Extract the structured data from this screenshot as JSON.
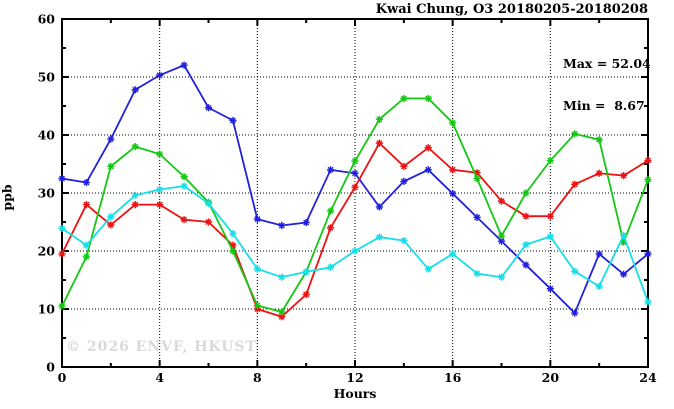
{
  "chart": {
    "title": "Kwai Chung, O3 20180205-20180208",
    "xlabel": "Hours",
    "ylabel": "ppb",
    "watermark": "© 2026 ENVF, HKUST",
    "annotations": {
      "max": "Max = 52.04",
      "min": "Min =  8.67"
    },
    "frame_color": "#000000",
    "background": "#ffffff"
  },
  "chart_data": {
    "type": "line",
    "title": "Kwai Chung, O3 20180205-20180208",
    "xlabel": "Hours",
    "ylabel": "ppb",
    "xlim": [
      0,
      24
    ],
    "ylim": [
      0,
      60
    ],
    "x_major_ticks": [
      0,
      4,
      8,
      12,
      16,
      20,
      24
    ],
    "x_minor_ticks": [
      2,
      6,
      10,
      14,
      18,
      22
    ],
    "y_major_ticks": [
      0,
      10,
      20,
      30,
      40,
      50,
      60
    ],
    "y_minor_ticks": [
      5,
      15,
      25,
      35,
      45,
      55
    ],
    "grid": "dotted-at-major-ticks",
    "legend_position": "none",
    "max_value": 52.04,
    "min_value": 8.67,
    "marker": "star",
    "x": [
      0,
      1,
      2,
      3,
      4,
      5,
      6,
      7,
      8,
      9,
      10,
      11,
      12,
      13,
      14,
      15,
      16,
      17,
      18,
      19,
      20,
      21,
      22,
      23,
      24
    ],
    "series": [
      {
        "name": "blue",
        "color": "#2020dd",
        "values": [
          32.5,
          31.8,
          39.3,
          47.8,
          50.3,
          52.04,
          44.7,
          42.5,
          25.5,
          24.4,
          24.9,
          34.0,
          33.4,
          27.6,
          32.0,
          34.0,
          29.9,
          25.8,
          21.7,
          17.6,
          13.5,
          9.3,
          19.5,
          16.0,
          19.5
        ]
      },
      {
        "name": "red",
        "color": "#ee1111",
        "values": [
          19.5,
          28.0,
          24.5,
          28.0,
          28.0,
          25.4,
          25.0,
          21.0,
          10.0,
          8.67,
          12.5,
          24.0,
          31.0,
          38.6,
          34.6,
          37.8,
          34.0,
          33.5,
          28.6,
          26.0,
          26.0,
          31.5,
          33.4,
          33.0,
          35.6
        ]
      },
      {
        "name": "green",
        "color": "#14c814",
        "values": [
          10.5,
          19.0,
          34.6,
          38.0,
          36.7,
          32.8,
          28.4,
          20.0,
          10.6,
          9.5,
          16.4,
          26.9,
          35.5,
          42.7,
          46.3,
          46.3,
          42.1,
          32.5,
          22.6,
          30.0,
          35.6,
          40.2,
          39.2,
          21.5,
          32.3
        ]
      },
      {
        "name": "cyan",
        "color": "#17dfe8",
        "values": [
          23.9,
          21.0,
          25.9,
          29.6,
          30.6,
          31.2,
          28.2,
          23.0,
          16.9,
          15.5,
          16.4,
          17.2,
          20.0,
          22.4,
          21.8,
          16.9,
          19.5,
          16.1,
          15.5,
          21.1,
          22.5,
          16.5,
          13.9,
          22.7,
          11.2
        ]
      }
    ]
  }
}
